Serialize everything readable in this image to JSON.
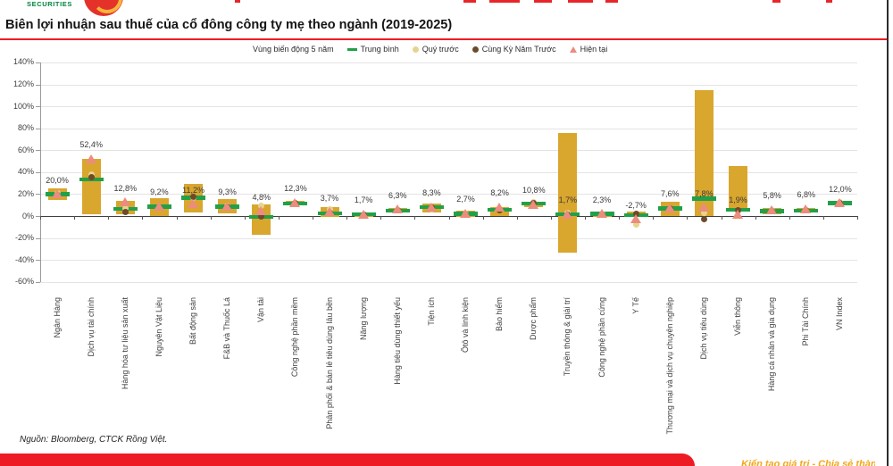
{
  "page": {
    "logo_text": "SECURITIES",
    "title": "Biên lợi nhuận sau thuế của cổ đông công ty mẹ theo ngành (2019-2025)",
    "source": "Nguồn: Bloomberg, CTCK Rồng Việt.",
    "footer_slogan": "Kiến tạo giá trị - Chia sẻ thành công"
  },
  "colors": {
    "range_bar": "#d9a62e",
    "average": "#21a049",
    "prev_quarter": "#e6d48e",
    "prev_year": "#6e4a2a",
    "current": "#ec8c7d",
    "title_rule": "#ed1c24",
    "footer_banner": "#ed1c24",
    "footer_slogan": "#f2a71b",
    "logo_green": "#00843d",
    "logo_red": "#e4322b"
  },
  "chart_data": {
    "type": "range-bar",
    "title": "Biên lợi nhuận sau thuế của cổ đông công ty mẹ theo ngành (2019-2025)",
    "xlabel": "",
    "ylabel": "",
    "ylim": [
      -60,
      140
    ],
    "ytick_step": 20,
    "grid": true,
    "legend_position": "top",
    "ytick_labels": [
      "140%",
      "120%",
      "100%",
      "80%",
      "60%",
      "40%",
      "20%",
      "0%",
      "-20%",
      "-40%",
      "-60%"
    ],
    "legend": [
      {
        "label": "Vùng biến động 5 năm",
        "marker": "none"
      },
      {
        "label": "Trung bình",
        "marker": "green-dash"
      },
      {
        "label": "Quý trước",
        "marker": "khaki-dot"
      },
      {
        "label": "Cùng Kỳ Năm Trước",
        "marker": "brown-dot"
      },
      {
        "label": "Hiện tại",
        "marker": "salmon-triangle"
      }
    ],
    "categories": [
      "Ngân Hàng",
      "Dịch vụ tài chính",
      "Hàng hóa tư liệu sản xuất",
      "Nguyên Vật Liệu",
      "Bất động sản",
      "F&B và Thuốc Lá",
      "Vận tải",
      "Công nghệ phần mềm",
      "Phân phối & bán lẻ tiêu dùng lâu bền",
      "Năng lượng",
      "Hàng tiêu dùng thiết yếu",
      "Tiện ích",
      "Ôtô và linh kiện",
      "Bảo hiểm",
      "Dược phẩm",
      "Truyền thông & giải trí",
      "Công nghệ phần cứng",
      "Y Tế",
      "Thương mại và dịch vụ chuyên nghiệp",
      "Dịch vụ tiêu dùng",
      "Viễn thông",
      "Hàng cá nhân và gia dụng",
      "Phi Tài Chính",
      "VN Index"
    ],
    "data_labels": [
      "20,0%",
      "52,4%",
      "12,8%",
      "9,2%",
      "11,2%",
      "9,3%",
      "4,8%",
      "12,3%",
      "3,7%",
      "1,7%",
      "6,3%",
      "8,3%",
      "2,7%",
      "8,2%",
      "10,8%",
      "1,7%",
      "2,3%",
      "-2,7%",
      "7,6%",
      "7,8%",
      "1,9%",
      "5,8%",
      "6,8%",
      "12,0%"
    ],
    "series": [
      {
        "name": "Vùng biến động 5 năm (min)",
        "values": [
          15,
          2,
          2,
          0,
          3,
          2.5,
          -17,
          9.5,
          -0.5,
          -1,
          3,
          3,
          -0.5,
          0,
          8,
          -33,
          -0.5,
          0,
          0,
          0,
          4,
          2,
          3,
          10
        ]
      },
      {
        "name": "Vùng biến động 5 năm (max)",
        "values": [
          25,
          52,
          14,
          16,
          29,
          15.5,
          10.5,
          14,
          8,
          3.5,
          7,
          11,
          5,
          8,
          13,
          76,
          4,
          4,
          13,
          115,
          45.5,
          7,
          7,
          14
        ]
      },
      {
        "name": "Trung bình",
        "values": [
          20,
          33.5,
          6.5,
          8.5,
          16.5,
          8.5,
          -0.8,
          11.5,
          2.5,
          1.5,
          5,
          8,
          2,
          5.5,
          11.5,
          1.5,
          2,
          1,
          7,
          16,
          5.5,
          4.5,
          5,
          12
        ]
      },
      {
        "name": "Quý trước",
        "values": [
          21,
          38,
          7,
          8,
          17,
          9,
          9.5,
          12,
          6,
          1.5,
          5.5,
          6,
          2,
          6,
          12.5,
          2.5,
          2,
          -8,
          7,
          3,
          4.5,
          5,
          5.5,
          12.5
        ]
      },
      {
        "name": "Cùng Kỳ Năm Trước",
        "values": [
          19.5,
          35,
          4,
          8,
          17.5,
          8.5,
          0,
          11.5,
          2.5,
          1,
          5,
          8,
          1.5,
          5.5,
          12,
          1,
          1.5,
          2,
          7,
          -2.5,
          5,
          4.5,
          5,
          12
        ]
      },
      {
        "name": "Hiện tại",
        "values": [
          20.0,
          52.4,
          12.8,
          9.2,
          11.2,
          9.3,
          4.8,
          12.3,
          3.7,
          1.7,
          6.3,
          8.3,
          2.7,
          8.2,
          10.8,
          1.7,
          2.3,
          -2.7,
          7.6,
          7.8,
          1.9,
          5.8,
          6.8,
          12.0
        ]
      }
    ]
  }
}
